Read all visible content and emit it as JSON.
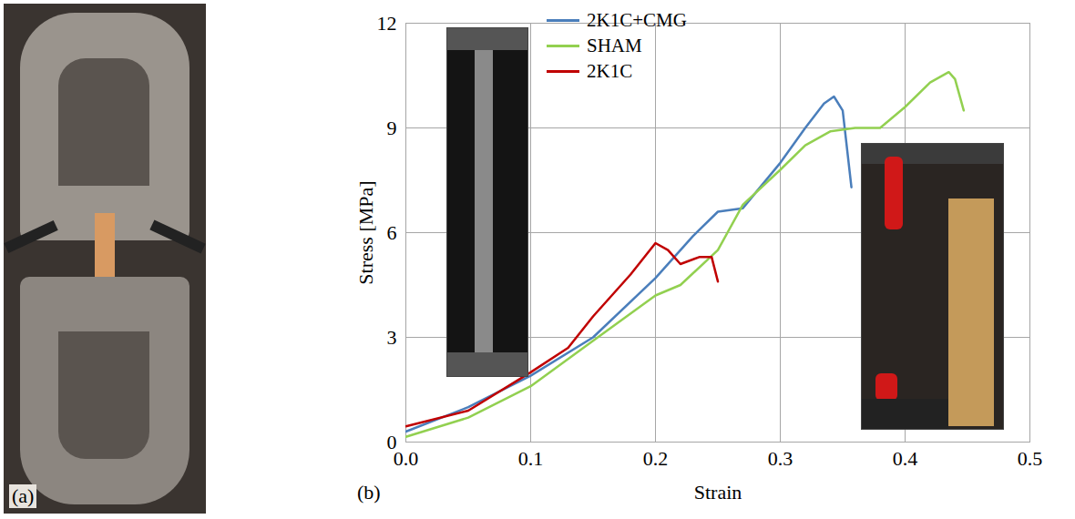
{
  "chart_data": {
    "type": "line",
    "x_label": "Strain",
    "y_label": "Stress [MPa]",
    "annotations": [
      "(a)",
      "(b)"
    ],
    "xlim": [
      0,
      0.5
    ],
    "xticks": [
      {
        "value": 0,
        "label": "0.0"
      },
      {
        "value": 0.1,
        "label": "0.1"
      },
      {
        "value": 0.2,
        "label": "0.2"
      },
      {
        "value": 0.3,
        "label": "0.3"
      },
      {
        "value": 0.4,
        "label": "0.4"
      },
      {
        "value": 0.5,
        "label": "0.5"
      }
    ],
    "ylim": [
      0,
      12
    ],
    "yticks": [
      0,
      3,
      6,
      9,
      12
    ],
    "grid": true,
    "legend": "top",
    "series": [
      {
        "name": "2K1C+CMG",
        "color": "#4a7ebb",
        "x": [
          0,
          0.05,
          0.1,
          0.15,
          0.2,
          0.23,
          0.25,
          0.27,
          0.3,
          0.32,
          0.335,
          0.343,
          0.35,
          0.357
        ],
        "values": [
          0.3,
          1.0,
          1.9,
          3.0,
          4.7,
          5.9,
          6.6,
          6.7,
          8.0,
          9.0,
          9.7,
          9.9,
          9.5,
          7.3
        ]
      },
      {
        "name": "SHAM",
        "color": "#92d050",
        "x": [
          0,
          0.05,
          0.1,
          0.15,
          0.2,
          0.22,
          0.25,
          0.27,
          0.3,
          0.32,
          0.34,
          0.36,
          0.38,
          0.4,
          0.42,
          0.435,
          0.44,
          0.447
        ],
        "values": [
          0.15,
          0.7,
          1.6,
          2.9,
          4.2,
          4.5,
          5.5,
          6.8,
          7.8,
          8.5,
          8.9,
          9.0,
          9.0,
          9.6,
          10.3,
          10.6,
          10.4,
          9.5
        ]
      },
      {
        "name": "2K1C",
        "color": "#c00000",
        "x": [
          0,
          0.05,
          0.1,
          0.13,
          0.15,
          0.18,
          0.2,
          0.21,
          0.22,
          0.235,
          0.245,
          0.25
        ],
        "values": [
          0.45,
          0.9,
          2.0,
          2.7,
          3.6,
          4.8,
          5.7,
          5.5,
          5.1,
          5.3,
          5.3,
          4.6
        ]
      }
    ]
  }
}
